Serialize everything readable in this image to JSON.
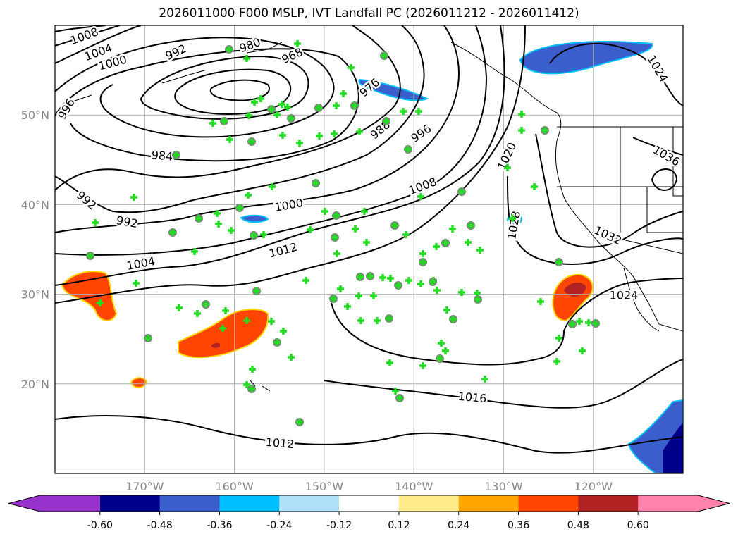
{
  "title": "2026011000 F000 MSLP, IVT Landfall PC (2026011212 - 2026011412)",
  "map": {
    "lon_range": [
      -180,
      -110
    ],
    "lat_range": [
      10,
      60
    ],
    "lat_labels": [
      "50°N",
      "40°N",
      "30°N",
      "20°N"
    ],
    "lat_values": [
      50,
      40,
      30,
      20
    ],
    "lon_labels": [
      "170°W",
      "160°W",
      "150°W",
      "140°W",
      "130°W",
      "120°W"
    ],
    "lon_values": [
      -170,
      -160,
      -150,
      -140,
      -130,
      -120
    ]
  },
  "contour_labels": [
    "1008",
    "1004",
    "1000",
    "992",
    "980",
    "968",
    "996",
    "976",
    "984",
    "988",
    "996",
    "992",
    "992",
    "1000",
    "1008",
    "1004",
    "1012",
    "1020",
    "1028",
    "1032",
    "1036",
    "1024",
    "1024",
    "1016",
    "1012"
  ],
  "colorbar": {
    "ticks": [
      "-0.60",
      "-0.48",
      "-0.36",
      "-0.24",
      "-0.12",
      "0.12",
      "0.24",
      "0.36",
      "0.48",
      "0.60"
    ],
    "colors": [
      "#9932cc",
      "#00008b",
      "#3a5fcd",
      "#00bfff",
      "#b0e0fa",
      "#ffffff",
      "#ffec8b",
      "#ffa500",
      "#ff4500",
      "#b22222",
      "#ff82ab"
    ]
  },
  "marker_colors": {
    "fill": "#808080",
    "plus": "#22dd22"
  },
  "markers_lonlat": []
}
